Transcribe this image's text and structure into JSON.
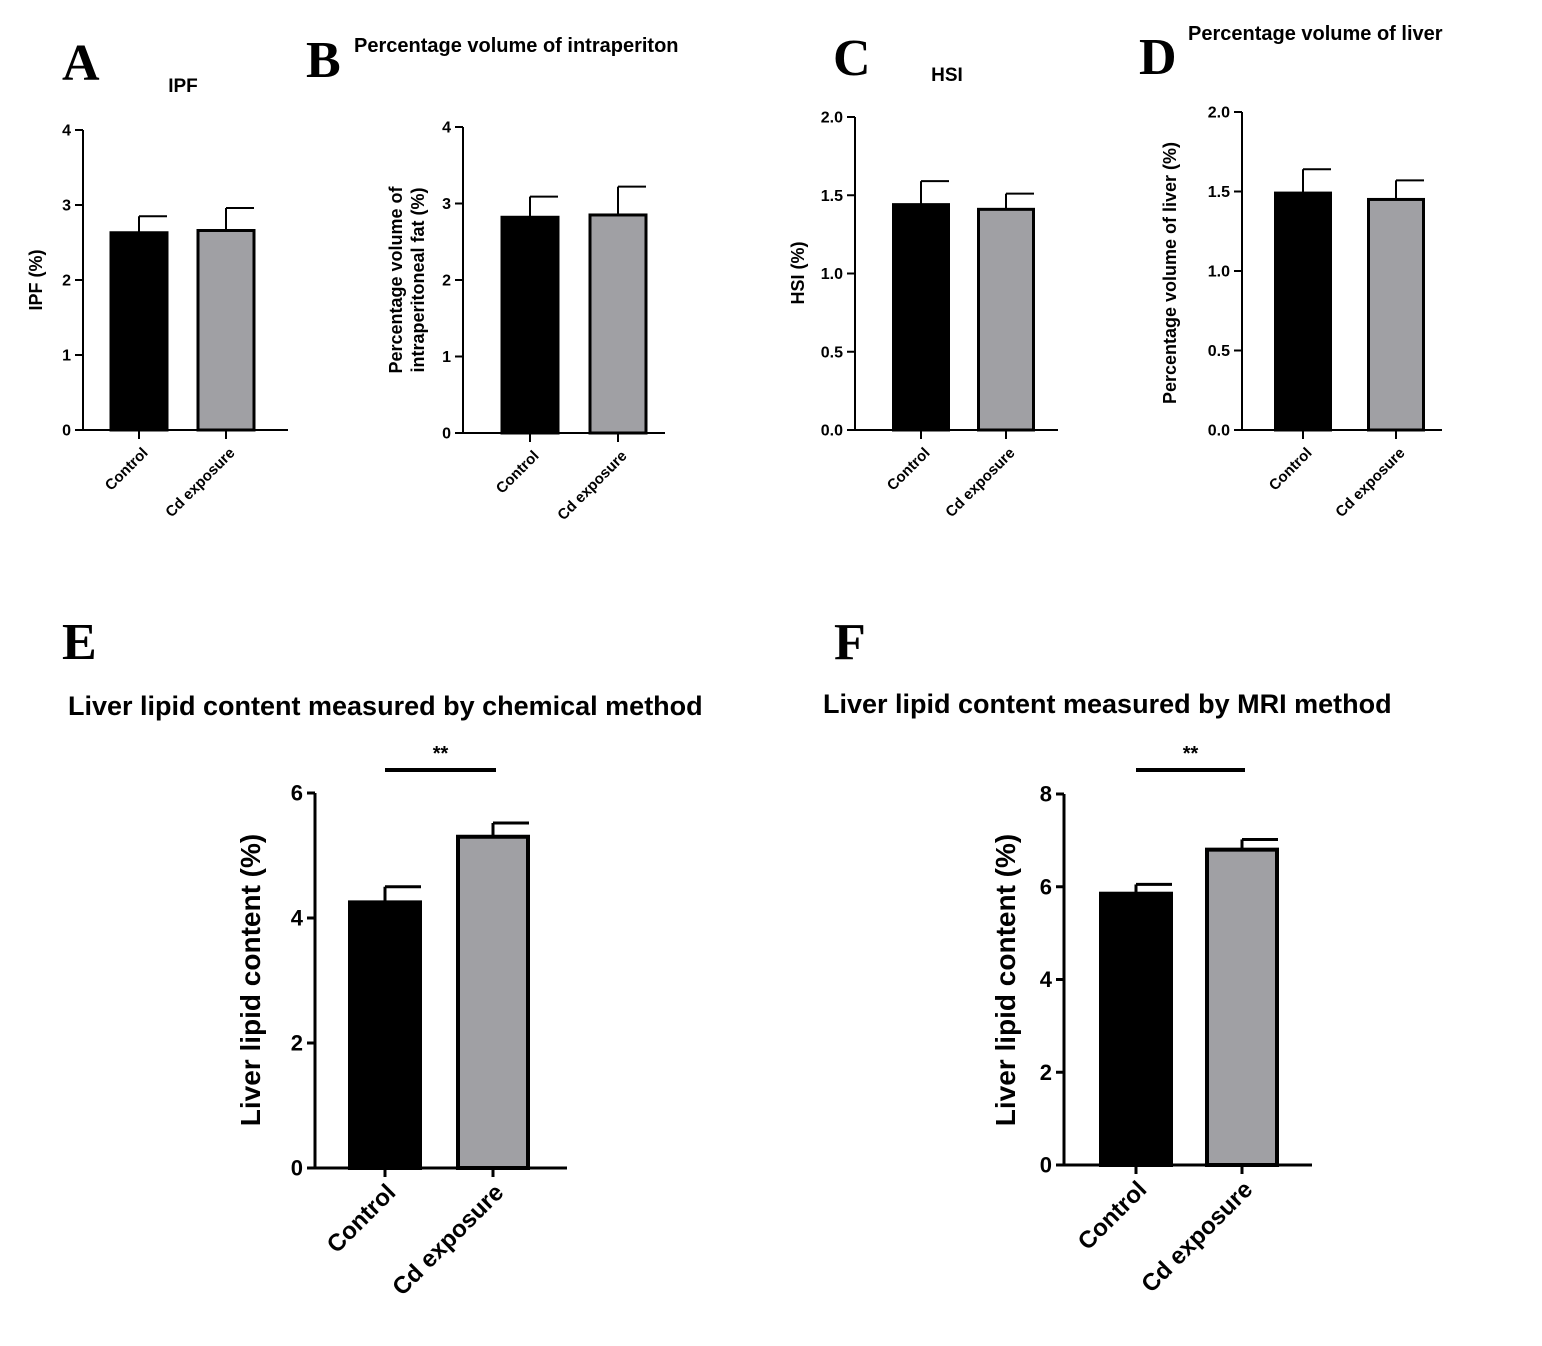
{
  "bar_colors": [
    "#000000",
    "#a0a0a4"
  ],
  "chart_data": [
    {
      "type": "bar",
      "panel": "A",
      "title": "IPF",
      "ylabel": "IPF (%)",
      "categories": [
        "Control",
        "Cd exposure"
      ],
      "values": [
        2.63,
        2.66
      ],
      "errors": [
        0.22,
        0.3
      ],
      "ylim": [
        0,
        4
      ],
      "yticks": [
        "0",
        "1",
        "2",
        "3",
        "4"
      ],
      "significance": ""
    },
    {
      "type": "bar",
      "panel": "B",
      "title": "Percentage volume of intraperiton",
      "ylabel": [
        "Percentage volume of",
        "intraperitoneal fat (%)"
      ],
      "categories": [
        "Control",
        "Cd exposure"
      ],
      "values": [
        2.82,
        2.85
      ],
      "errors": [
        0.27,
        0.37
      ],
      "ylim": [
        0,
        4
      ],
      "yticks": [
        "0",
        "1",
        "2",
        "3",
        "4"
      ],
      "significance": ""
    },
    {
      "type": "bar",
      "panel": "C",
      "title": "HSI",
      "ylabel": "HSI (%)",
      "categories": [
        "Control",
        "Cd exposure"
      ],
      "values": [
        1.44,
        1.41
      ],
      "errors": [
        0.15,
        0.1
      ],
      "ylim": [
        0,
        2.0
      ],
      "yticks": [
        "0.0",
        "0.5",
        "1.0",
        "1.5",
        "2.0"
      ],
      "significance": ""
    },
    {
      "type": "bar",
      "panel": "D",
      "title": "Percentage volume of liver",
      "ylabel": "Percentage volume of liver (%)",
      "categories": [
        "Control",
        "Cd exposure"
      ],
      "values": [
        1.49,
        1.45
      ],
      "errors": [
        0.15,
        0.12
      ],
      "ylim": [
        0,
        2.0
      ],
      "yticks": [
        "0.0",
        "0.5",
        "1.0",
        "1.5",
        "2.0"
      ],
      "significance": ""
    },
    {
      "type": "bar",
      "panel": "E",
      "title": "Liver lipid content measured by chemical method",
      "ylabel": "Liver lipid content (%)",
      "categories": [
        "Control",
        "Cd exposure"
      ],
      "values": [
        4.25,
        5.3
      ],
      "errors": [
        0.25,
        0.22
      ],
      "ylim": [
        0,
        6
      ],
      "yticks": [
        "0",
        "2",
        "4",
        "6"
      ],
      "significance": "**"
    },
    {
      "type": "bar",
      "panel": "F",
      "title": "Liver lipid content measured by MRI method",
      "ylabel": "Liver lipid content (%)",
      "categories": [
        "Control",
        "Cd exposure"
      ],
      "values": [
        5.85,
        6.8
      ],
      "errors": [
        0.2,
        0.22
      ],
      "ylim": [
        0,
        8
      ],
      "yticks": [
        "0",
        "2",
        "4",
        "6",
        "8"
      ],
      "significance": "**"
    }
  ]
}
